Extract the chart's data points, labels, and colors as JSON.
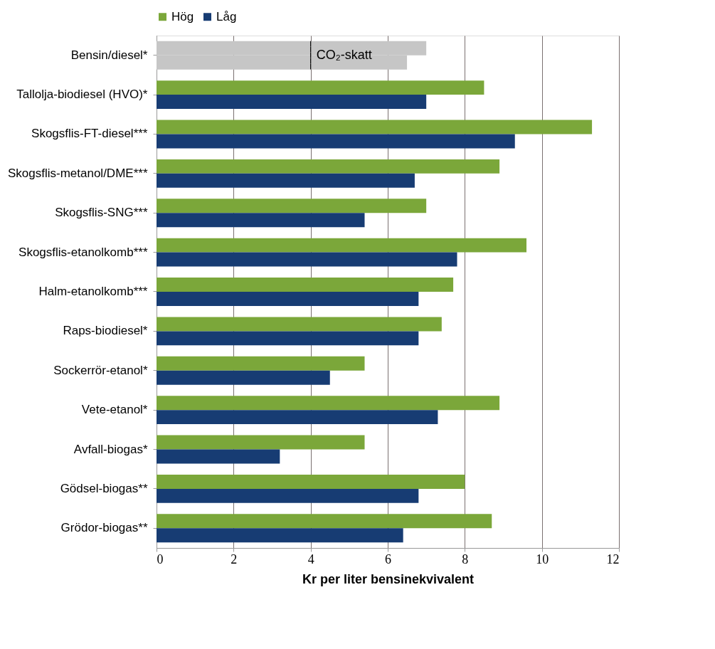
{
  "chart_data": {
    "type": "bar",
    "orientation": "horizontal",
    "categories": [
      "Bensin/diesel*",
      "Tallolja-biodiesel (HVO)*",
      "Skogsflis-FT-diesel***",
      "Skogsflis-metanol/DME***",
      "Skogsflis-SNG***",
      "Skogsflis-etanolkomb***",
      "Halm-etanolkomb***",
      "Raps-biodiesel*",
      "Sockerrör-etanol*",
      "Vete-etanol*",
      "Avfall-biogas*",
      "Gödsel-biogas**",
      "Grödor-biogas**"
    ],
    "series": [
      {
        "name": "Hög",
        "color": "#7ba73a",
        "colors": [
          "#c6c6c6",
          "#7ba73a",
          "#7ba73a",
          "#7ba73a",
          "#7ba73a",
          "#7ba73a",
          "#7ba73a",
          "#7ba73a",
          "#7ba73a",
          "#7ba73a",
          "#7ba73a",
          "#7ba73a",
          "#7ba73a"
        ],
        "values": [
          7.0,
          8.5,
          11.3,
          8.9,
          7.0,
          9.6,
          7.7,
          7.4,
          5.4,
          8.9,
          5.4,
          8.0,
          8.7
        ]
      },
      {
        "name": "Låg",
        "color": "#173c73",
        "colors": [
          "#c6c6c6",
          "#173c73",
          "#173c73",
          "#173c73",
          "#173c73",
          "#173c73",
          "#173c73",
          "#173c73",
          "#173c73",
          "#173c73",
          "#173c73",
          "#173c73",
          "#173c73"
        ],
        "values": [
          6.5,
          7.0,
          9.3,
          6.7,
          5.4,
          7.8,
          6.8,
          6.8,
          4.5,
          7.3,
          3.2,
          6.8,
          6.4
        ]
      }
    ],
    "xlabel": "Kr per liter bensinekvivalent",
    "xlim": [
      0,
      12
    ],
    "xticks": [
      0,
      2,
      4,
      6,
      8,
      10,
      12
    ],
    "ref_lines": [
      {
        "axis": "x",
        "value": 4,
        "label": "CO₂-skatt",
        "line_style": "dashed",
        "color": "#000000"
      }
    ],
    "grid": "x",
    "legend": "top"
  }
}
